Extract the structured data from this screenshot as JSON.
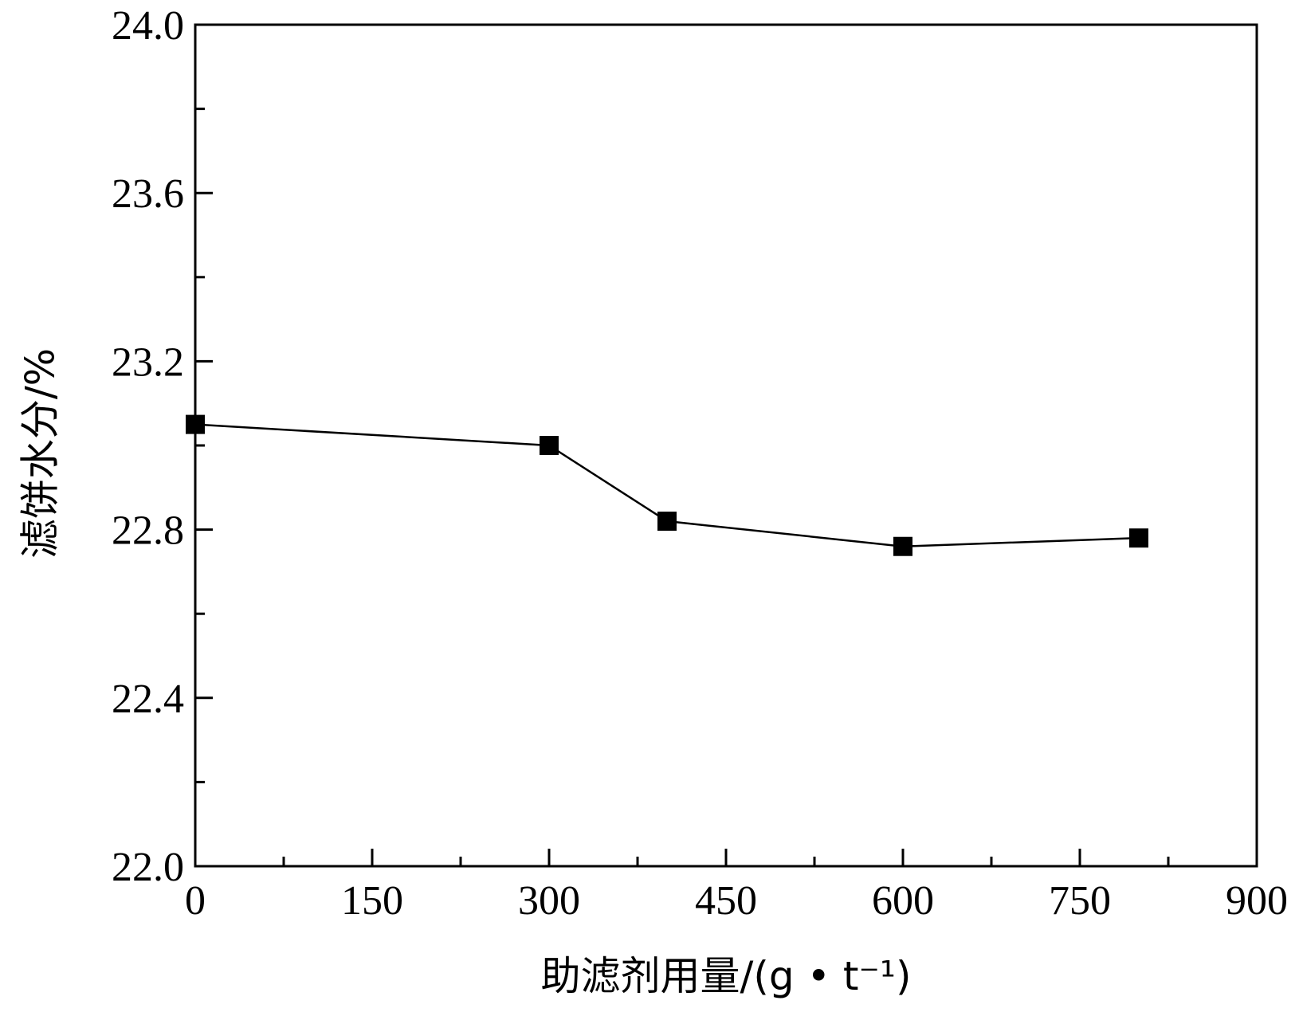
{
  "chart_data": {
    "type": "line",
    "xlabel": "助滤剂用量/(g • t⁻¹)",
    "ylabel": "滤饼水分/%",
    "xlim": [
      0,
      900
    ],
    "ylim": [
      22.0,
      24.0
    ],
    "x_ticks": [
      "0",
      "150",
      "300",
      "450",
      "600",
      "750",
      "900"
    ],
    "y_ticks": [
      "22.0",
      "22.4",
      "22.8",
      "23.2",
      "23.6",
      "24.0"
    ],
    "x_tick_values": [
      0,
      150,
      300,
      450,
      600,
      750,
      900
    ],
    "y_tick_values": [
      22.0,
      22.4,
      22.8,
      23.2,
      23.6,
      24.0
    ],
    "x_minor_step": 75,
    "y_minor_step": 0.2,
    "grid": false,
    "legend": "none",
    "series": [
      {
        "marker": "square",
        "color": "#000000",
        "x": [
          0,
          300,
          400,
          600,
          800
        ],
        "y": [
          23.05,
          23.0,
          22.82,
          22.76,
          22.78
        ]
      }
    ]
  }
}
